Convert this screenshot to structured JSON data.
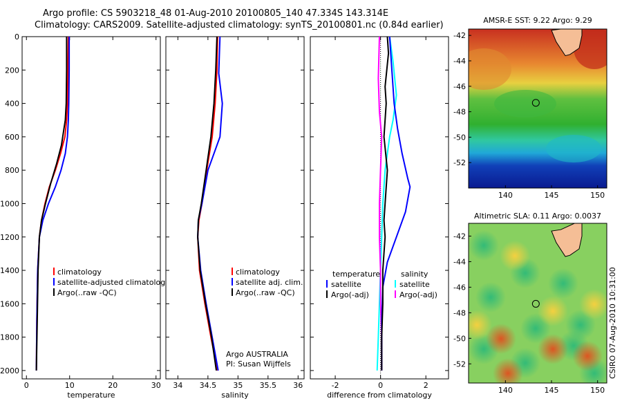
{
  "header": {
    "line1": "Argo profile: CS 5903218_48 01-Aug-2010 20100805_140 47.334S 143.314E",
    "line2": "Climatology: CARS2009. Satellite-adjusted climatology: synTS_20100801.nc (0.84d earlier)"
  },
  "credit": "CSIRO 07-Aug-2010 10:31:00",
  "colors": {
    "red": "#ff0000",
    "blue": "#0000ff",
    "black": "#000000",
    "cyan": "#00ffff",
    "magenta": "#ff00ff",
    "land": "#f5be96"
  },
  "chart_data": [
    {
      "type": "line",
      "xlabel": "temperature",
      "ylabel": "",
      "xlim": [
        -1,
        31
      ],
      "ylim": [
        2050,
        0
      ],
      "x_ticks": [
        "0",
        "10",
        "20",
        "30"
      ],
      "y_ticks": [
        "0",
        "200",
        "400",
        "600",
        "800",
        "1000",
        "1200",
        "1400",
        "1600",
        "1800",
        "2000"
      ],
      "legend": [
        {
          "label": "climatology",
          "color": "#ff0000"
        },
        {
          "label": "satellite-adjusted climatology",
          "color": "#0000ff"
        },
        {
          "label": "Argo(..raw -QC)",
          "color": "#000000"
        }
      ],
      "series": [
        {
          "color": "#ff0000",
          "x": [
            9.7,
            9.6,
            9.5,
            9.3,
            8.9,
            7.9,
            6.7,
            5.3,
            4.3,
            3.5,
            3.0,
            2.6,
            2.4,
            2.3
          ],
          "y": [
            0,
            200,
            400,
            500,
            600,
            700,
            800,
            900,
            1000,
            1100,
            1200,
            1400,
            1700,
            2000
          ]
        },
        {
          "color": "#0000ff",
          "x": [
            9.9,
            9.9,
            9.8,
            9.7,
            9.5,
            9.0,
            8.0,
            6.7,
            5.1,
            3.8,
            3.0,
            2.6,
            2.4,
            2.3
          ],
          "y": [
            0,
            200,
            400,
            500,
            600,
            700,
            800,
            900,
            1000,
            1100,
            1200,
            1400,
            1700,
            2000
          ]
        },
        {
          "color": "#000000",
          "x": [
            9.3,
            9.3,
            9.2,
            9.0,
            8.7,
            8.1,
            7.0,
            5.6,
            4.4,
            3.5,
            3.0,
            2.7,
            2.5,
            2.3
          ],
          "y": [
            0,
            200,
            400,
            500,
            550,
            650,
            760,
            880,
            1000,
            1100,
            1200,
            1400,
            1700,
            2000
          ]
        }
      ]
    },
    {
      "type": "line",
      "xlabel": "salinity",
      "xlim": [
        33.8,
        36.1
      ],
      "ylim": [
        2050,
        0
      ],
      "x_ticks": [
        "34",
        "34.5",
        "35",
        "35.5",
        "36"
      ],
      "legend": [
        {
          "label": "climatology",
          "color": "#ff0000"
        },
        {
          "label": "satellite adj. clim.",
          "color": "#0000ff"
        },
        {
          "label": "Argo(..raw -QC)",
          "color": "#000000"
        }
      ],
      "annotation": [
        "Argo AUSTRALIA",
        "PI: Susan Wijffels"
      ],
      "series": [
        {
          "color": "#ff0000",
          "x": [
            34.66,
            34.65,
            34.62,
            34.57,
            34.48,
            34.4,
            34.35,
            34.33,
            34.36,
            34.45,
            34.55,
            34.66
          ],
          "y": [
            0,
            200,
            400,
            600,
            800,
            1000,
            1100,
            1200,
            1400,
            1600,
            1800,
            2000
          ]
        },
        {
          "color": "#0000ff",
          "x": [
            34.7,
            34.68,
            34.74,
            34.7,
            34.5,
            34.4,
            34.34,
            34.33,
            34.38,
            34.47,
            34.57,
            34.67
          ],
          "y": [
            0,
            220,
            400,
            600,
            800,
            1000,
            1100,
            1200,
            1400,
            1600,
            1800,
            2000
          ]
        },
        {
          "color": "#000000",
          "x": [
            34.65,
            34.63,
            34.6,
            34.55,
            34.47,
            34.39,
            34.34,
            34.33,
            34.37,
            34.46,
            34.56,
            34.64
          ],
          "y": [
            0,
            200,
            400,
            600,
            800,
            1000,
            1100,
            1200,
            1400,
            1600,
            1800,
            2000
          ]
        }
      ]
    },
    {
      "type": "line",
      "xlabel": "difference from climatology",
      "xlim": [
        -3.1,
        3.0
      ],
      "ylim": [
        2050,
        0
      ],
      "x_ticks": [
        "-2",
        "0",
        "2"
      ],
      "legend": [
        {
          "label": "temperature",
          "color": ""
        },
        {
          "label": "satellite",
          "color": "#0000ff"
        },
        {
          "label": "Argo(-adj)",
          "color": "#000000"
        },
        {
          "label": "salinity",
          "color": ""
        },
        {
          "label": "satellite",
          "color": "#00ffff"
        },
        {
          "label": "Argo(-adj)",
          "color": "#ff00ff"
        }
      ],
      "series": [
        {
          "color": "#00ffff",
          "x": [
            0.4,
            0.55,
            0.7,
            0.55,
            0.4,
            0.2,
            0.1,
            0.05,
            0.0,
            -0.05,
            -0.1,
            -0.15
          ],
          "y": [
            0,
            150,
            350,
            500,
            600,
            800,
            1000,
            1200,
            1400,
            1600,
            1800,
            2000
          ]
        },
        {
          "color": "#ff00ff",
          "x": [
            -0.05,
            -0.1,
            -0.05,
            0.05,
            0.0,
            -0.05,
            -0.05,
            0.0,
            0.0,
            0.05,
            0.05
          ],
          "y": [
            0,
            250,
            450,
            600,
            800,
            1000,
            1200,
            1400,
            1600,
            1800,
            2000
          ]
        },
        {
          "color": "#0000ff",
          "x": [
            0.4,
            0.5,
            0.6,
            0.75,
            0.95,
            1.2,
            1.3,
            1.1,
            0.7,
            0.3,
            0.1,
            0.05,
            0.05,
            0.05
          ],
          "y": [
            0,
            200,
            400,
            550,
            700,
            850,
            900,
            1050,
            1200,
            1350,
            1500,
            1700,
            1900,
            2000
          ]
        },
        {
          "color": "#000000",
          "x": [
            0.3,
            0.35,
            0.2,
            0.25,
            0.15,
            0.3,
            0.2,
            0.15,
            0.2,
            0.1,
            0.1,
            0.05,
            0.05,
            0.05
          ],
          "y": [
            0,
            100,
            300,
            400,
            600,
            800,
            1000,
            1100,
            1200,
            1400,
            1600,
            1800,
            1900,
            2000
          ]
        }
      ]
    },
    {
      "type": "heatmap",
      "title": "AMSR-E SST: 9.22 Argo: 9.29",
      "xlim": [
        136,
        151
      ],
      "ylim": [
        -54,
        -41.5
      ],
      "x_ticks": [
        "140",
        "145",
        "150"
      ],
      "y_ticks": [
        "-42",
        "-44",
        "-46",
        "-48",
        "-50",
        "-52"
      ],
      "marker": {
        "x": 143.3,
        "y": -47.3
      }
    },
    {
      "type": "heatmap",
      "title": "Altimetric SLA: 0.11 Argo: 0.0037",
      "xlim": [
        136,
        151
      ],
      "ylim": [
        -53.5,
        -41
      ],
      "x_ticks": [
        "140",
        "145",
        "150"
      ],
      "y_ticks": [
        "-42",
        "-44",
        "-46",
        "-48",
        "-50",
        "-52"
      ],
      "marker": {
        "x": 143.3,
        "y": -47.3
      }
    }
  ]
}
